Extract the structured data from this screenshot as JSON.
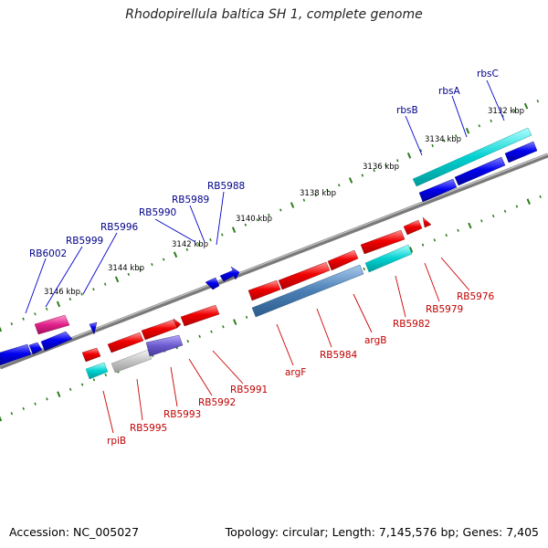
{
  "title": "Rhodopirellula baltica SH 1, complete genome",
  "footer": {
    "accession": "Accession: NC_005027",
    "topology": "Topology: circular; Length: 7,145,576 bp; Genes: 7,405"
  },
  "colors": {
    "backbone": "#808080",
    "tick_marks": "#2e7d1e",
    "forward_label": "#00008b",
    "reverse_label": "#c00000",
    "gene_red": "#f00000",
    "gene_blue": "#0000ee",
    "gene_cyan": "#00d0d0",
    "gene_steelblue": "#4a7fb5",
    "gene_magenta": "#e0208a",
    "gene_gray": "#bdbdbd",
    "gene_purple": "#6a5acd"
  },
  "scale_labels": [
    {
      "text": "3132 kbp",
      "kbp": 3132
    },
    {
      "text": "3134 kbp",
      "kbp": 3134
    },
    {
      "text": "3136 kbp",
      "kbp": 3136
    },
    {
      "text": "3138 kbp",
      "kbp": 3138
    },
    {
      "text": "3140 kbp",
      "kbp": 3140
    },
    {
      "text": "3142 kbp",
      "kbp": 3142
    },
    {
      "text": "3144 kbp",
      "kbp": 3144
    },
    {
      "text": "3146 kbp",
      "kbp": 3146
    }
  ],
  "forward_labels": [
    "rbsC",
    "rbsA",
    "rbsB",
    "RB5988",
    "RB5989",
    "RB5990",
    "RB5996",
    "RB5999",
    "RB6002"
  ],
  "reverse_labels": [
    "RB5976",
    "RB5979",
    "RB5982",
    "argB",
    "RB5984",
    "argF",
    "RB5991",
    "RB5992",
    "RB5993",
    "RB5995",
    "rpiB"
  ]
}
